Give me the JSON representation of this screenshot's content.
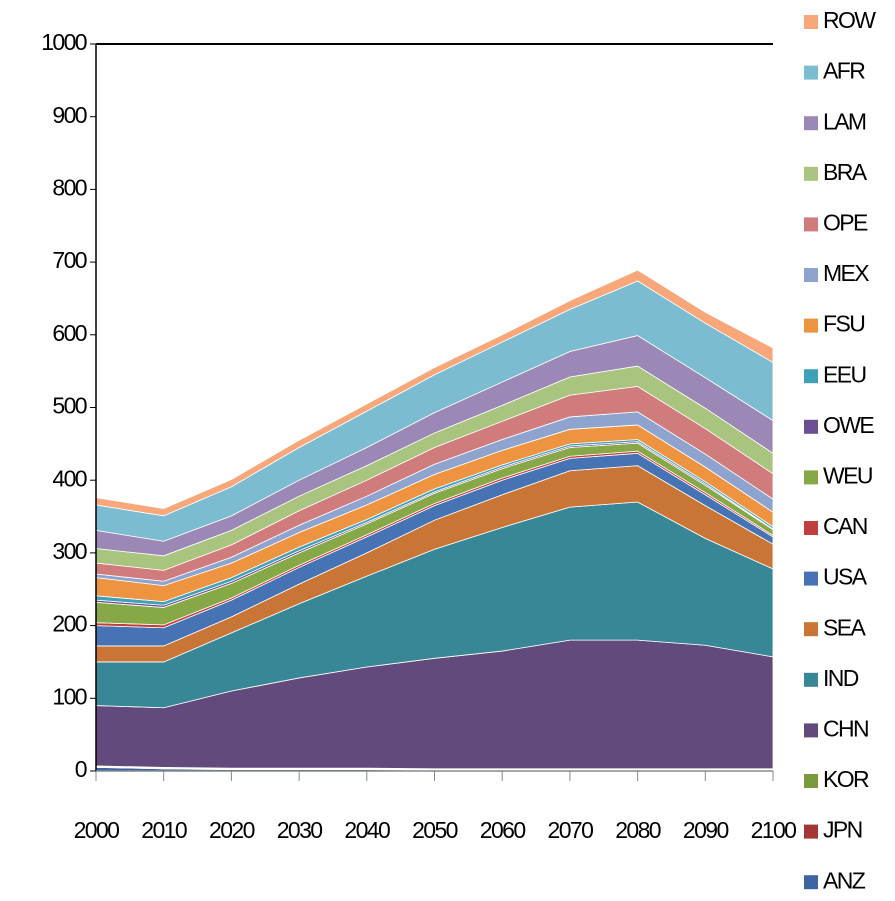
{
  "chart_data": {
    "type": "stacked_area",
    "x": [
      2000,
      2010,
      2020,
      2030,
      2040,
      2050,
      2060,
      2070,
      2080,
      2090,
      2100
    ],
    "xlim": [
      2000,
      2100
    ],
    "xticks": [
      2000,
      2010,
      2020,
      2030,
      2040,
      2050,
      2060,
      2070,
      2080,
      2090,
      2100
    ],
    "ylim": [
      0,
      1000
    ],
    "yticks": [
      0,
      100,
      200,
      300,
      400,
      500,
      600,
      700,
      800,
      900,
      1000
    ],
    "grid": false,
    "legend": "right",
    "series": [
      {
        "name": "ANZ",
        "color": "#3d66a0",
        "values": [
          5,
          3,
          2,
          2,
          2,
          1,
          1,
          1,
          1,
          1,
          1
        ]
      },
      {
        "name": "JPN",
        "color": "#a63634",
        "values": [
          1,
          1,
          1,
          1,
          1,
          1,
          1,
          1,
          1,
          1,
          1
        ]
      },
      {
        "name": "KOR",
        "color": "#7a9a3e",
        "values": [
          1,
          1,
          1,
          1,
          1,
          1,
          1,
          1,
          1,
          1,
          1
        ]
      },
      {
        "name": "CHN",
        "color": "#624b7c",
        "values": [
          83,
          82,
          106,
          124,
          139,
          152,
          162,
          177,
          177,
          170,
          154
        ]
      },
      {
        "name": "IND",
        "color": "#388797",
        "values": [
          60,
          63,
          80,
          102,
          125,
          150,
          170,
          183,
          190,
          147,
          121
        ]
      },
      {
        "name": "SEA",
        "color": "#c87535",
        "values": [
          22,
          22,
          22,
          27,
          32,
          40,
          45,
          50,
          50,
          45,
          34
        ]
      },
      {
        "name": "USA",
        "color": "#4573b3",
        "values": [
          28,
          25,
          23,
          23,
          22,
          20,
          20,
          17,
          17,
          15,
          10
        ]
      },
      {
        "name": "CAN",
        "color": "#bf3f3d",
        "values": [
          4,
          4,
          3,
          3,
          3,
          3,
          3,
          3,
          3,
          3,
          2
        ]
      },
      {
        "name": "WEU",
        "color": "#86a846",
        "values": [
          28,
          24,
          20,
          17,
          15,
          14,
          13,
          12,
          11,
          10,
          8
        ]
      },
      {
        "name": "OWE",
        "color": "#6c4f92",
        "values": [
          3,
          3,
          3,
          3,
          2,
          2,
          2,
          2,
          2,
          2,
          1
        ]
      },
      {
        "name": "EEU",
        "color": "#3fa1b8",
        "values": [
          6,
          5,
          5,
          5,
          4,
          4,
          3,
          3,
          3,
          3,
          3
        ]
      },
      {
        "name": "FSU",
        "color": "#ee9441",
        "values": [
          25,
          22,
          20,
          20,
          20,
          20,
          20,
          20,
          20,
          20,
          20
        ]
      },
      {
        "name": "MEX",
        "color": "#8ea4cf",
        "values": [
          5,
          6,
          8,
          10,
          12,
          14,
          15,
          17,
          18,
          18,
          18
        ]
      },
      {
        "name": "OPE",
        "color": "#d07c7c",
        "values": [
          15,
          15,
          17,
          20,
          22,
          23,
          25,
          30,
          35,
          35,
          35
        ]
      },
      {
        "name": "BRA",
        "color": "#a9c47e",
        "values": [
          20,
          20,
          20,
          20,
          20,
          20,
          22,
          25,
          28,
          28,
          28
        ]
      },
      {
        "name": "LAM",
        "color": "#9b88b6",
        "values": [
          25,
          20,
          20,
          22,
          25,
          28,
          32,
          35,
          42,
          42,
          45
        ]
      },
      {
        "name": "AFR",
        "color": "#7cbcd1",
        "values": [
          35,
          35,
          40,
          45,
          50,
          52,
          55,
          58,
          75,
          75,
          80
        ]
      },
      {
        "name": "ROW",
        "color": "#f7a77a",
        "values": [
          10,
          10,
          10,
          10,
          10,
          10,
          10,
          12,
          15,
          15,
          20
        ]
      }
    ]
  }
}
